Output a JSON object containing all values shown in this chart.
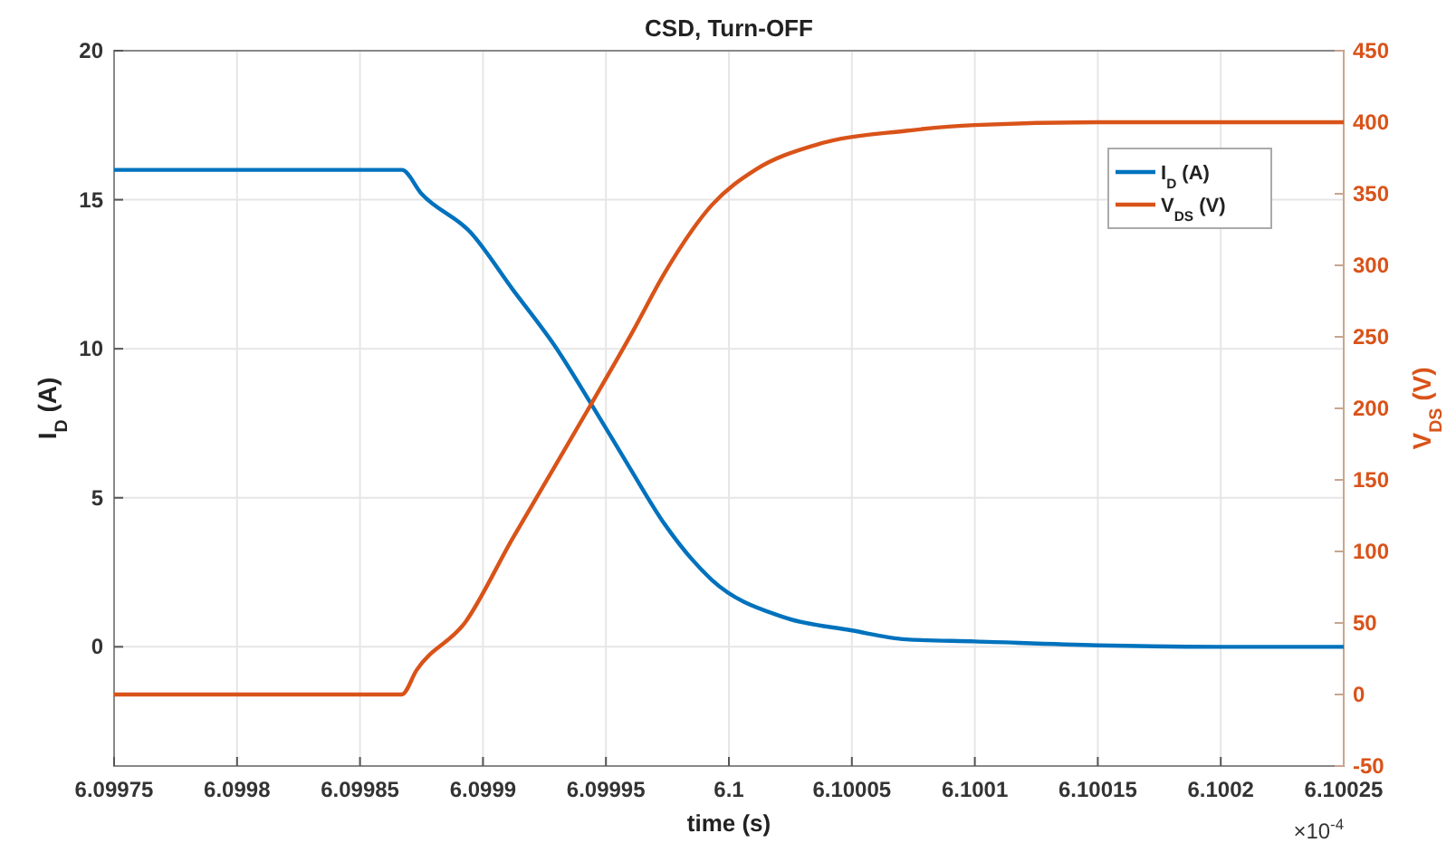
{
  "chart_data": {
    "type": "line",
    "title": "CSD, Turn-OFF",
    "xlabel": "time (s)",
    "ylabel": "I$_{D}$ (A)",
    "y2label": "V$_{DS}$ (V)",
    "annotations": [
      "×10$^{-4}$"
    ],
    "xlim": [
      6.09975,
      6.10025
    ],
    "xticks": [
      6.09975,
      6.0998,
      6.09985,
      6.0999,
      6.09995,
      6.1,
      6.10005,
      6.1001,
      6.10015,
      6.1002,
      6.10025
    ],
    "ylim": [
      -4,
      20
    ],
    "yticks": [
      0,
      5,
      10,
      15,
      20
    ],
    "y2lim": [
      -50,
      450
    ],
    "y2ticks": [
      -50,
      0,
      50,
      100,
      150,
      200,
      250,
      300,
      350,
      400,
      450
    ],
    "grid": true,
    "legend": "top right",
    "line_style": "solid",
    "marker": "none",
    "series": [
      {
        "name": "I$_{D}$ (A)",
        "color": "#0072bd",
        "x": [
          6.09975,
          6.0998,
          6.09985,
          6.099867,
          6.099875,
          6.099895,
          6.099912,
          6.09993,
          6.099944,
          6.099959,
          6.099974,
          6.099993,
          6.100022,
          6.10005,
          6.100072,
          6.1001,
          6.10015,
          6.1002,
          6.10025
        ],
        "values": [
          16,
          16,
          16,
          16,
          15.2,
          13.9,
          12,
          10,
          8.15,
          6.1,
          4.1,
          2.25,
          1,
          0.55,
          0.25,
          0.18,
          0.05,
          0,
          0
        ]
      },
      {
        "name": "V$_{DS}$ (V)",
        "color": "#d95319",
        "axis": "y2",
        "x": [
          6.09975,
          6.0998,
          6.09985,
          6.099867,
          6.099873,
          6.099893,
          6.099912,
          6.099925,
          6.099944,
          6.099961,
          6.099974,
          6.099993,
          6.100011,
          6.100035,
          6.100072,
          6.1001,
          6.10015,
          6.1002,
          6.10025
        ],
        "values": [
          0,
          0,
          0,
          0,
          17,
          51,
          109,
          147,
          203,
          254,
          295,
          342,
          367,
          384,
          394,
          398,
          400,
          400,
          400
        ]
      }
    ]
  }
}
